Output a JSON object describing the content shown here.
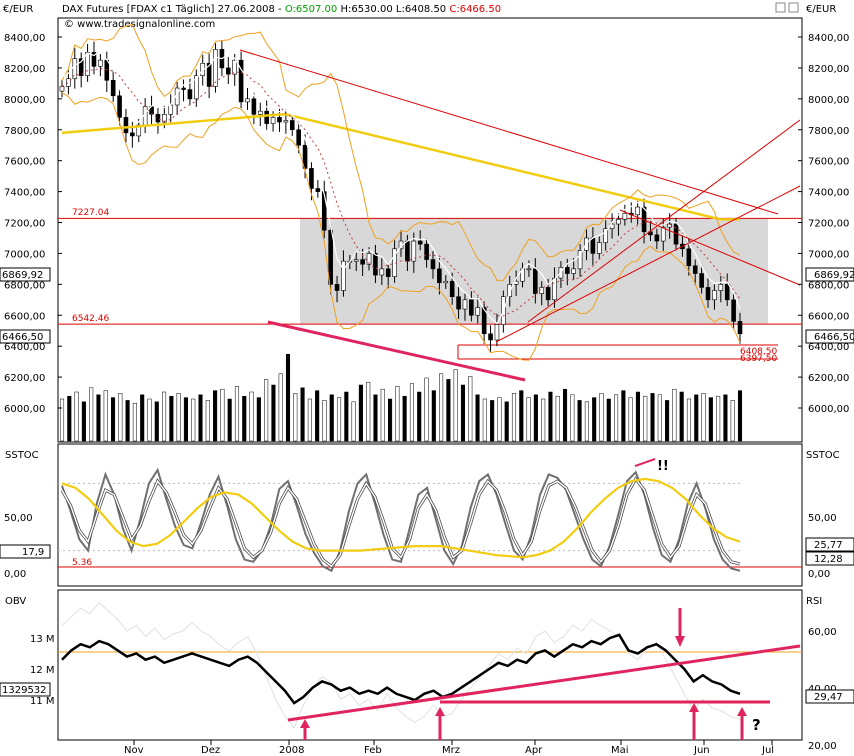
{
  "header": {
    "unit_label": "€/EUR",
    "title": "DAX Futures [FDAX c1  Täglich] 27.06.2008 - ",
    "open": "O:6507.00",
    "high": "H:6530.00",
    "low": "L:6408.50",
    "close": "C:6466.50",
    "copyright": "© www.tradesignalonline.com"
  },
  "colors": {
    "price_line": "#e00000",
    "bollinger": "#f0a020",
    "ma_yellow": "#f2cc10",
    "range_box": "#d8d8d8",
    "bull_arrow": "#e0245e",
    "grid_text": "#000000"
  },
  "chart_data": [
    {
      "name": "DAX price panel",
      "type": "candlestick",
      "unit": "€/EUR",
      "x_axis": {
        "ticks": [
          "Nov",
          "Dez",
          "2008",
          "Feb",
          "Mrz",
          "Apr",
          "Mai",
          "Jun",
          "Jul"
        ]
      },
      "y_axis": {
        "ticks": [
          "8400,00",
          "8200,00",
          "8000,00",
          "7800,00",
          "7600,00",
          "7400,00",
          "7200,00",
          "7000,00",
          "6800,00",
          "6600,00",
          "6400,00",
          "6200,00",
          "6000,00"
        ],
        "range": [
          5900,
          8500
        ]
      },
      "current_close_left": "6466,50",
      "current_close_right": "6466,50",
      "cursor_value_left": "6869,92",
      "cursor_value_right": "6869,92",
      "horizontal_lines": [
        {
          "value": 7227.04,
          "label": "7227.04"
        },
        {
          "value": 6542.46,
          "label": "6542.46"
        }
      ],
      "annotation_labels": [
        "6408,50",
        "6397,50"
      ],
      "ohlc_series_approx": [
        8080,
        8130,
        8260,
        8150,
        8300,
        8210,
        8250,
        8120,
        8020,
        7880,
        7780,
        7760,
        7830,
        7950,
        7900,
        7850,
        7900,
        7960,
        8070,
        8060,
        8000,
        8150,
        8230,
        8080,
        8320,
        8200,
        8160,
        8250,
        7980,
        8000,
        7900,
        7920,
        7840,
        7880,
        7850,
        7860,
        7800,
        7700,
        7550,
        7420,
        7400,
        7150,
        6800,
        6760,
        6950,
        6950,
        6960,
        6930,
        7000,
        6860,
        6900,
        6850,
        7030,
        7080,
        6950,
        7080,
        7060,
        6960,
        6900,
        6810,
        6820,
        6720,
        6640,
        6700,
        6600,
        6650,
        6480,
        6440,
        6540,
        6720,
        6800,
        6820,
        6900,
        6900,
        6740,
        6780,
        6700,
        6840,
        6910,
        6870,
        6900,
        7020,
        7100,
        7000,
        7070,
        7160,
        7190,
        7220,
        7260,
        7250,
        7300,
        7140,
        7120,
        7080,
        7170,
        7190,
        7060,
        7030,
        6920,
        6870,
        6780,
        6700,
        6760,
        6800,
        6700,
        6560,
        6480
      ]
    },
    {
      "name": "Volume",
      "type": "bar",
      "y_axis": {
        "ticks": []
      },
      "values_relative_approx": [
        30,
        32,
        35,
        28,
        38,
        33,
        36,
        31,
        34,
        29,
        27,
        33,
        30,
        28,
        35,
        32,
        34,
        31,
        30,
        33,
        29,
        36,
        37,
        30,
        39,
        32,
        35,
        31,
        44,
        40,
        48,
        62,
        34,
        38,
        30,
        36,
        29,
        33,
        31,
        35,
        28,
        40,
        42,
        33,
        37,
        30,
        39,
        32,
        41,
        35,
        45,
        36,
        48,
        44,
        51,
        40,
        46,
        33,
        30,
        29,
        31,
        28,
        34,
        36,
        31,
        33,
        30,
        35,
        32,
        37,
        33,
        29,
        28,
        31,
        34,
        30,
        33,
        36,
        31,
        35,
        32,
        34,
        33,
        29,
        37,
        35,
        30,
        33,
        34,
        31,
        32,
        33,
        29,
        36
      ]
    },
    {
      "name": "SSTOC",
      "type": "line",
      "label": "SSTOC",
      "y_axis": {
        "ticks": [
          "50,00",
          "0,00"
        ],
        "range": [
          0,
          100
        ]
      },
      "value_left": "17,9",
      "value_right_1": "25,77",
      "value_right_2": "12,28",
      "horizontal_line_label": "5.36",
      "annotation": "!!",
      "series": [
        {
          "name": "fast",
          "values": [
            78,
            55,
            30,
            20,
            62,
            88,
            70,
            40,
            20,
            48,
            80,
            92,
            66,
            42,
            25,
            22,
            45,
            70,
            86,
            60,
            30,
            12,
            10,
            20,
            42,
            75,
            82,
            60,
            35,
            18,
            6,
            2,
            20,
            55,
            80,
            88,
            62,
            34,
            12,
            10,
            40,
            70,
            76,
            48,
            20,
            8,
            24,
            58,
            82,
            88,
            70,
            44,
            20,
            12,
            34,
            70,
            88,
            85,
            74,
            52,
            30,
            12,
            6,
            24,
            52,
            82,
            90,
            70,
            40,
            16,
            10,
            30,
            62,
            80,
            58,
            30,
            12,
            4,
            2
          ]
        },
        {
          "name": "slow",
          "values": [
            74,
            60,
            38,
            28,
            52,
            74,
            70,
            50,
            30,
            42,
            64,
            82,
            72,
            54,
            34,
            26,
            38,
            58,
            76,
            66,
            44,
            22,
            14,
            20,
            36,
            62,
            76,
            66,
            46,
            26,
            12,
            6,
            16,
            42,
            66,
            80,
            68,
            46,
            22,
            14,
            30,
            58,
            70,
            56,
            32,
            14,
            20,
            44,
            70,
            82,
            74,
            54,
            30,
            16,
            28,
            56,
            78,
            82,
            76,
            60,
            40,
            20,
            10,
            20,
            42,
            70,
            84,
            74,
            50,
            26,
            14,
            24,
            50,
            70,
            62,
            40,
            20,
            10,
            8
          ]
        },
        {
          "name": "smooth",
          "values": [
            80,
            76,
            66,
            52,
            38,
            28,
            24,
            26,
            34,
            46,
            58,
            68,
            72,
            70,
            62,
            50,
            38,
            28,
            22,
            20,
            20,
            20,
            20,
            21,
            22,
            23,
            24,
            24,
            24,
            22,
            20,
            18,
            16,
            15,
            14,
            16,
            20,
            28,
            40,
            54,
            66,
            76,
            82,
            84,
            82,
            76,
            66,
            52,
            40,
            32,
            28
          ]
        }
      ]
    },
    {
      "name": "OBV / RSI",
      "type": "line",
      "label_left": "OBV",
      "label_right": "RSI",
      "y_axis_left": {
        "ticks": [
          "13 M",
          "12 M",
          "11 M"
        ]
      },
      "y_axis_right": {
        "ticks": [
          "60,00",
          "40,00",
          "20,00"
        ]
      },
      "value_left": "1329532",
      "value_right": "29,47",
      "annotation": "?",
      "series": [
        {
          "name": "OBV",
          "values": [
            12.3,
            12.6,
            12.8,
            12.7,
            12.9,
            12.8,
            12.6,
            12.4,
            12.5,
            12.3,
            12.4,
            12.2,
            12.3,
            12.4,
            12.5,
            12.4,
            12.3,
            12.2,
            12.1,
            12.3,
            12.4,
            12.2,
            11.9,
            11.6,
            11.3,
            10.9,
            11.1,
            11.4,
            11.6,
            11.5,
            11.3,
            11.4,
            11.2,
            11.3,
            11.2,
            11.4,
            11.2,
            11.1,
            11.0,
            11.2,
            11.3,
            11.1,
            11.2,
            11.4,
            11.6,
            11.8,
            12.0,
            12.2,
            12.1,
            12.3,
            12.2,
            12.5,
            12.6,
            12.4,
            12.6,
            12.8,
            12.7,
            12.9,
            12.8,
            13.0,
            13.1,
            12.6,
            12.5,
            12.7,
            12.8,
            12.6,
            12.3,
            12.0,
            11.6,
            11.8,
            11.6,
            11.5,
            11.3,
            11.2
          ]
        },
        {
          "name": "RSI",
          "values": [
            62,
            65,
            68,
            66,
            70,
            67,
            64,
            60,
            62,
            58,
            61,
            57,
            59,
            60,
            63,
            60,
            58,
            55,
            53,
            56,
            58,
            52,
            44,
            36,
            30,
            26,
            34,
            40,
            44,
            42,
            36,
            38,
            34,
            36,
            32,
            38,
            33,
            30,
            28,
            30,
            34,
            30,
            31,
            36,
            40,
            44,
            48,
            52,
            50,
            54,
            52,
            58,
            60,
            56,
            58,
            62,
            60,
            64,
            62,
            60,
            58,
            52,
            50,
            54,
            56,
            50,
            44,
            38,
            32,
            36,
            33,
            32,
            30,
            29
          ]
        }
      ]
    }
  ],
  "x_ticks": [
    "Nov",
    "Dez",
    "2008",
    "Feb",
    "Mrz",
    "Apr",
    "Mai",
    "Jun",
    "Jul"
  ]
}
